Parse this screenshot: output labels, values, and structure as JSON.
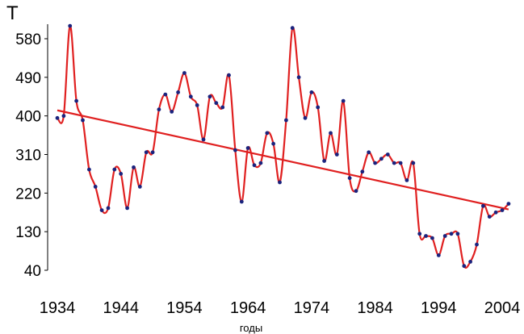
{
  "chart_data": {
    "type": "line",
    "title": "",
    "ylabel": "T",
    "xlabel": "годы",
    "xlim": [
      1934,
      2005
    ],
    "ylim": [
      40,
      610
    ],
    "x_ticks": [
      1934,
      1944,
      1954,
      1964,
      1974,
      1984,
      1994,
      2004
    ],
    "y_ticks": [
      40,
      130,
      220,
      310,
      400,
      490,
      580
    ],
    "grid": false,
    "colors": {
      "line": "#e02020",
      "points": "#1a237e",
      "trend": "#e02020"
    },
    "series": [
      {
        "x": [
          1934,
          1935,
          1936,
          1937,
          1938,
          1939,
          1940,
          1941,
          1942,
          1943,
          1944,
          1945,
          1946,
          1947,
          1948,
          1949,
          1950,
          1951,
          1952,
          1953,
          1954,
          1955,
          1956,
          1957,
          1958,
          1959,
          1960,
          1961,
          1962,
          1963,
          1964,
          1965,
          1966,
          1967,
          1968,
          1969,
          1970,
          1971,
          1972,
          1973,
          1974,
          1975,
          1976,
          1977,
          1978,
          1979,
          1980,
          1981,
          1982,
          1983,
          1984,
          1985,
          1986,
          1987,
          1988,
          1989,
          1990,
          1991,
          1992,
          1993,
          1994,
          1995,
          1996,
          1997,
          1998,
          1999,
          2000,
          2001,
          2002,
          2003,
          2004,
          2005
        ],
        "values": [
          395,
          400,
          610,
          435,
          390,
          275,
          235,
          180,
          185,
          275,
          265,
          185,
          280,
          235,
          315,
          315,
          415,
          450,
          410,
          455,
          500,
          445,
          425,
          345,
          445,
          430,
          420,
          495,
          320,
          200,
          325,
          285,
          290,
          360,
          335,
          245,
          390,
          605,
          490,
          395,
          455,
          420,
          295,
          360,
          310,
          435,
          255,
          225,
          270,
          315,
          290,
          300,
          310,
          290,
          290,
          250,
          290,
          125,
          120,
          115,
          75,
          120,
          125,
          125,
          50,
          60,
          100,
          190,
          165,
          175,
          180,
          195
        ]
      },
      {
        "x": [
          1934,
          2005
        ],
        "values": [
          413,
          182
        ]
      }
    ]
  }
}
